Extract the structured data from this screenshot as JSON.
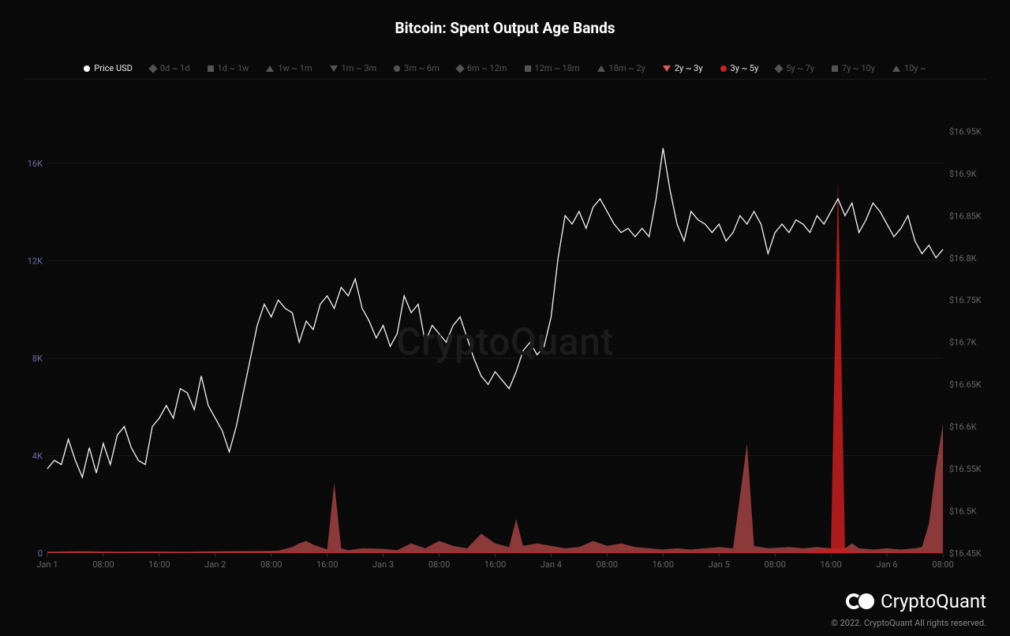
{
  "title": "Bitcoin: Spent Output Age Bands",
  "watermark": "CryptoQuant",
  "brand": "CryptoQuant",
  "copyright": "© 2022. CryptoQuant All rights reserved.",
  "background_color": "#0a0a0a",
  "legend": [
    {
      "label": "Price USD",
      "shape": "circle",
      "color": "#ffffff",
      "active": true
    },
    {
      "label": "0d ~ 1d",
      "shape": "diamond",
      "color": "#555555",
      "active": false
    },
    {
      "label": "1d ~ 1w",
      "shape": "square",
      "color": "#555555",
      "active": false
    },
    {
      "label": "1w ~ 1m",
      "shape": "tri-up",
      "color": "#555555",
      "active": false
    },
    {
      "label": "1m ~ 3m",
      "shape": "tri-down",
      "color": "#555555",
      "active": false
    },
    {
      "label": "3m ~ 6m",
      "shape": "circle",
      "color": "#555555",
      "active": false
    },
    {
      "label": "6m ~ 12m",
      "shape": "diamond",
      "color": "#555555",
      "active": false
    },
    {
      "label": "12m ~ 18m",
      "shape": "square",
      "color": "#555555",
      "active": false
    },
    {
      "label": "18m ~ 2y",
      "shape": "tri-up",
      "color": "#555555",
      "active": false
    },
    {
      "label": "2y ~ 3y",
      "shape": "tri-down",
      "color": "#e25858",
      "active": true
    },
    {
      "label": "3y ~ 5y",
      "shape": "circle",
      "color": "#c91f1f",
      "active": true
    },
    {
      "label": "5y ~ 7y",
      "shape": "diamond",
      "color": "#555555",
      "active": false
    },
    {
      "label": "7y ~ 10y",
      "shape": "square",
      "color": "#555555",
      "active": false
    },
    {
      "label": "10y ~",
      "shape": "tri-up",
      "color": "#555555",
      "active": false
    }
  ],
  "chart": {
    "type": "line+area",
    "grid_color": "#1a1a1a",
    "left_axis": {
      "label_color": "#6b6ba8",
      "min": 0,
      "max": 18000,
      "ticks": [
        {
          "v": 0,
          "label": "0"
        },
        {
          "v": 4000,
          "label": "4K"
        },
        {
          "v": 8000,
          "label": "8K"
        },
        {
          "v": 12000,
          "label": "12K"
        },
        {
          "v": 16000,
          "label": "16K"
        }
      ]
    },
    "right_axis": {
      "label_color": "#888888",
      "min": 16450,
      "max": 16970,
      "ticks": [
        {
          "v": 16450,
          "label": "$16.45K"
        },
        {
          "v": 16500,
          "label": "$16.5K"
        },
        {
          "v": 16550,
          "label": "$16.55K"
        },
        {
          "v": 16600,
          "label": "$16.6K"
        },
        {
          "v": 16650,
          "label": "$16.65K"
        },
        {
          "v": 16700,
          "label": "$16.7K"
        },
        {
          "v": 16750,
          "label": "$16.75K"
        },
        {
          "v": 16800,
          "label": "$16.8K"
        },
        {
          "v": 16850,
          "label": "$16.85K"
        },
        {
          "v": 16900,
          "label": "$16.9K"
        },
        {
          "v": 16950,
          "label": "$16.95K"
        }
      ]
    },
    "x_axis": {
      "min": 0,
      "max": 128,
      "ticks": [
        {
          "v": 0,
          "label": "Jan 1"
        },
        {
          "v": 8,
          "label": "08:00"
        },
        {
          "v": 16,
          "label": "16:00"
        },
        {
          "v": 24,
          "label": "Jan 2"
        },
        {
          "v": 32,
          "label": "08:00"
        },
        {
          "v": 40,
          "label": "16:00"
        },
        {
          "v": 48,
          "label": "Jan 3"
        },
        {
          "v": 56,
          "label": "08:00"
        },
        {
          "v": 64,
          "label": "16:00"
        },
        {
          "v": 72,
          "label": "Jan 4"
        },
        {
          "v": 80,
          "label": "08:00"
        },
        {
          "v": 88,
          "label": "16:00"
        },
        {
          "v": 96,
          "label": "Jan 5"
        },
        {
          "v": 104,
          "label": "08:00"
        },
        {
          "v": 112,
          "label": "16:00"
        },
        {
          "v": 120,
          "label": "Jan 6"
        },
        {
          "v": 128,
          "label": "08:00"
        }
      ]
    },
    "price_series": {
      "color": "#f5f5f5",
      "axis": "right",
      "points": [
        [
          0,
          16550
        ],
        [
          1,
          16560
        ],
        [
          2,
          16555
        ],
        [
          3,
          16585
        ],
        [
          4,
          16560
        ],
        [
          5,
          16540
        ],
        [
          6,
          16575
        ],
        [
          7,
          16545
        ],
        [
          8,
          16580
        ],
        [
          9,
          16555
        ],
        [
          10,
          16590
        ],
        [
          11,
          16600
        ],
        [
          12,
          16575
        ],
        [
          13,
          16560
        ],
        [
          14,
          16555
        ],
        [
          15,
          16600
        ],
        [
          16,
          16610
        ],
        [
          17,
          16625
        ],
        [
          18,
          16610
        ],
        [
          19,
          16645
        ],
        [
          20,
          16640
        ],
        [
          21,
          16620
        ],
        [
          22,
          16660
        ],
        [
          23,
          16625
        ],
        [
          24,
          16610
        ],
        [
          25,
          16595
        ],
        [
          26,
          16570
        ],
        [
          27,
          16600
        ],
        [
          28,
          16640
        ],
        [
          29,
          16680
        ],
        [
          30,
          16720
        ],
        [
          31,
          16745
        ],
        [
          32,
          16730
        ],
        [
          33,
          16750
        ],
        [
          34,
          16740
        ],
        [
          35,
          16735
        ],
        [
          36,
          16700
        ],
        [
          37,
          16725
        ],
        [
          38,
          16715
        ],
        [
          39,
          16745
        ],
        [
          40,
          16755
        ],
        [
          41,
          16740
        ],
        [
          42,
          16765
        ],
        [
          43,
          16755
        ],
        [
          44,
          16775
        ],
        [
          45,
          16740
        ],
        [
          46,
          16725
        ],
        [
          47,
          16705
        ],
        [
          48,
          16720
        ],
        [
          49,
          16695
        ],
        [
          50,
          16710
        ],
        [
          51,
          16755
        ],
        [
          52,
          16735
        ],
        [
          53,
          16745
        ],
        [
          54,
          16700
        ],
        [
          55,
          16720
        ],
        [
          56,
          16710
        ],
        [
          57,
          16700
        ],
        [
          58,
          16720
        ],
        [
          59,
          16730
        ],
        [
          60,
          16705
        ],
        [
          61,
          16680
        ],
        [
          62,
          16660
        ],
        [
          63,
          16650
        ],
        [
          64,
          16665
        ],
        [
          65,
          16655
        ],
        [
          66,
          16645
        ],
        [
          67,
          16665
        ],
        [
          68,
          16690
        ],
        [
          69,
          16700
        ],
        [
          70,
          16685
        ],
        [
          71,
          16695
        ],
        [
          72,
          16730
        ],
        [
          73,
          16800
        ],
        [
          74,
          16850
        ],
        [
          75,
          16840
        ],
        [
          76,
          16855
        ],
        [
          77,
          16835
        ],
        [
          78,
          16860
        ],
        [
          79,
          16870
        ],
        [
          80,
          16855
        ],
        [
          81,
          16840
        ],
        [
          82,
          16830
        ],
        [
          83,
          16835
        ],
        [
          84,
          16825
        ],
        [
          85,
          16835
        ],
        [
          86,
          16825
        ],
        [
          87,
          16870
        ],
        [
          88,
          16930
        ],
        [
          89,
          16880
        ],
        [
          90,
          16840
        ],
        [
          91,
          16820
        ],
        [
          92,
          16855
        ],
        [
          93,
          16845
        ],
        [
          94,
          16840
        ],
        [
          95,
          16830
        ],
        [
          96,
          16840
        ],
        [
          97,
          16820
        ],
        [
          98,
          16830
        ],
        [
          99,
          16850
        ],
        [
          100,
          16840
        ],
        [
          101,
          16855
        ],
        [
          102,
          16840
        ],
        [
          103,
          16805
        ],
        [
          104,
          16830
        ],
        [
          105,
          16840
        ],
        [
          106,
          16830
        ],
        [
          107,
          16845
        ],
        [
          108,
          16840
        ],
        [
          109,
          16830
        ],
        [
          110,
          16850
        ],
        [
          111,
          16840
        ],
        [
          112,
          16855
        ],
        [
          113,
          16870
        ],
        [
          114,
          16850
        ],
        [
          115,
          16865
        ],
        [
          116,
          16830
        ],
        [
          117,
          16845
        ],
        [
          118,
          16865
        ],
        [
          119,
          16855
        ],
        [
          120,
          16840
        ],
        [
          121,
          16825
        ],
        [
          122,
          16835
        ],
        [
          123,
          16850
        ],
        [
          124,
          16820
        ],
        [
          125,
          16805
        ],
        [
          126,
          16815
        ],
        [
          127,
          16800
        ],
        [
          128,
          16810
        ]
      ]
    },
    "area_a": {
      "name": "2y ~ 3y",
      "color": "#e25858",
      "axis": "left",
      "points": [
        [
          0,
          60
        ],
        [
          5,
          80
        ],
        [
          10,
          60
        ],
        [
          15,
          70
        ],
        [
          20,
          60
        ],
        [
          25,
          80
        ],
        [
          30,
          90
        ],
        [
          33,
          100
        ],
        [
          35,
          250
        ],
        [
          36,
          400
        ],
        [
          37,
          500
        ],
        [
          38,
          350
        ],
        [
          39,
          250
        ],
        [
          40,
          150
        ],
        [
          41,
          2900
        ],
        [
          42,
          200
        ],
        [
          43,
          120
        ],
        [
          45,
          200
        ],
        [
          48,
          180
        ],
        [
          50,
          120
        ],
        [
          52,
          400
        ],
        [
          54,
          200
        ],
        [
          56,
          500
        ],
        [
          58,
          300
        ],
        [
          60,
          200
        ],
        [
          62,
          800
        ],
        [
          64,
          400
        ],
        [
          66,
          250
        ],
        [
          67,
          1400
        ],
        [
          68,
          300
        ],
        [
          70,
          400
        ],
        [
          72,
          300
        ],
        [
          74,
          200
        ],
        [
          76,
          250
        ],
        [
          78,
          500
        ],
        [
          80,
          300
        ],
        [
          82,
          400
        ],
        [
          84,
          250
        ],
        [
          86,
          200
        ],
        [
          88,
          150
        ],
        [
          90,
          200
        ],
        [
          92,
          150
        ],
        [
          94,
          200
        ],
        [
          96,
          250
        ],
        [
          98,
          200
        ],
        [
          100,
          4500
        ],
        [
          101,
          300
        ],
        [
          103,
          200
        ],
        [
          106,
          250
        ],
        [
          108,
          200
        ],
        [
          110,
          250
        ],
        [
          112,
          200
        ],
        [
          114,
          200
        ],
        [
          115,
          400
        ],
        [
          116,
          200
        ],
        [
          118,
          150
        ],
        [
          120,
          200
        ],
        [
          122,
          150
        ],
        [
          124,
          200
        ],
        [
          125,
          250
        ],
        [
          126,
          1200
        ],
        [
          127,
          3500
        ],
        [
          128,
          5300
        ]
      ]
    },
    "area_b": {
      "name": "3y ~ 5y",
      "color": "#c91f1f",
      "axis": "left",
      "points": [
        [
          0,
          20
        ],
        [
          10,
          25
        ],
        [
          20,
          20
        ],
        [
          30,
          25
        ],
        [
          40,
          30
        ],
        [
          50,
          25
        ],
        [
          60,
          30
        ],
        [
          70,
          35
        ],
        [
          80,
          30
        ],
        [
          90,
          30
        ],
        [
          100,
          30
        ],
        [
          108,
          30
        ],
        [
          112,
          200
        ],
        [
          113,
          15300
        ],
        [
          114,
          200
        ],
        [
          116,
          30
        ],
        [
          120,
          25
        ],
        [
          125,
          30
        ],
        [
          128,
          30
        ]
      ]
    }
  }
}
